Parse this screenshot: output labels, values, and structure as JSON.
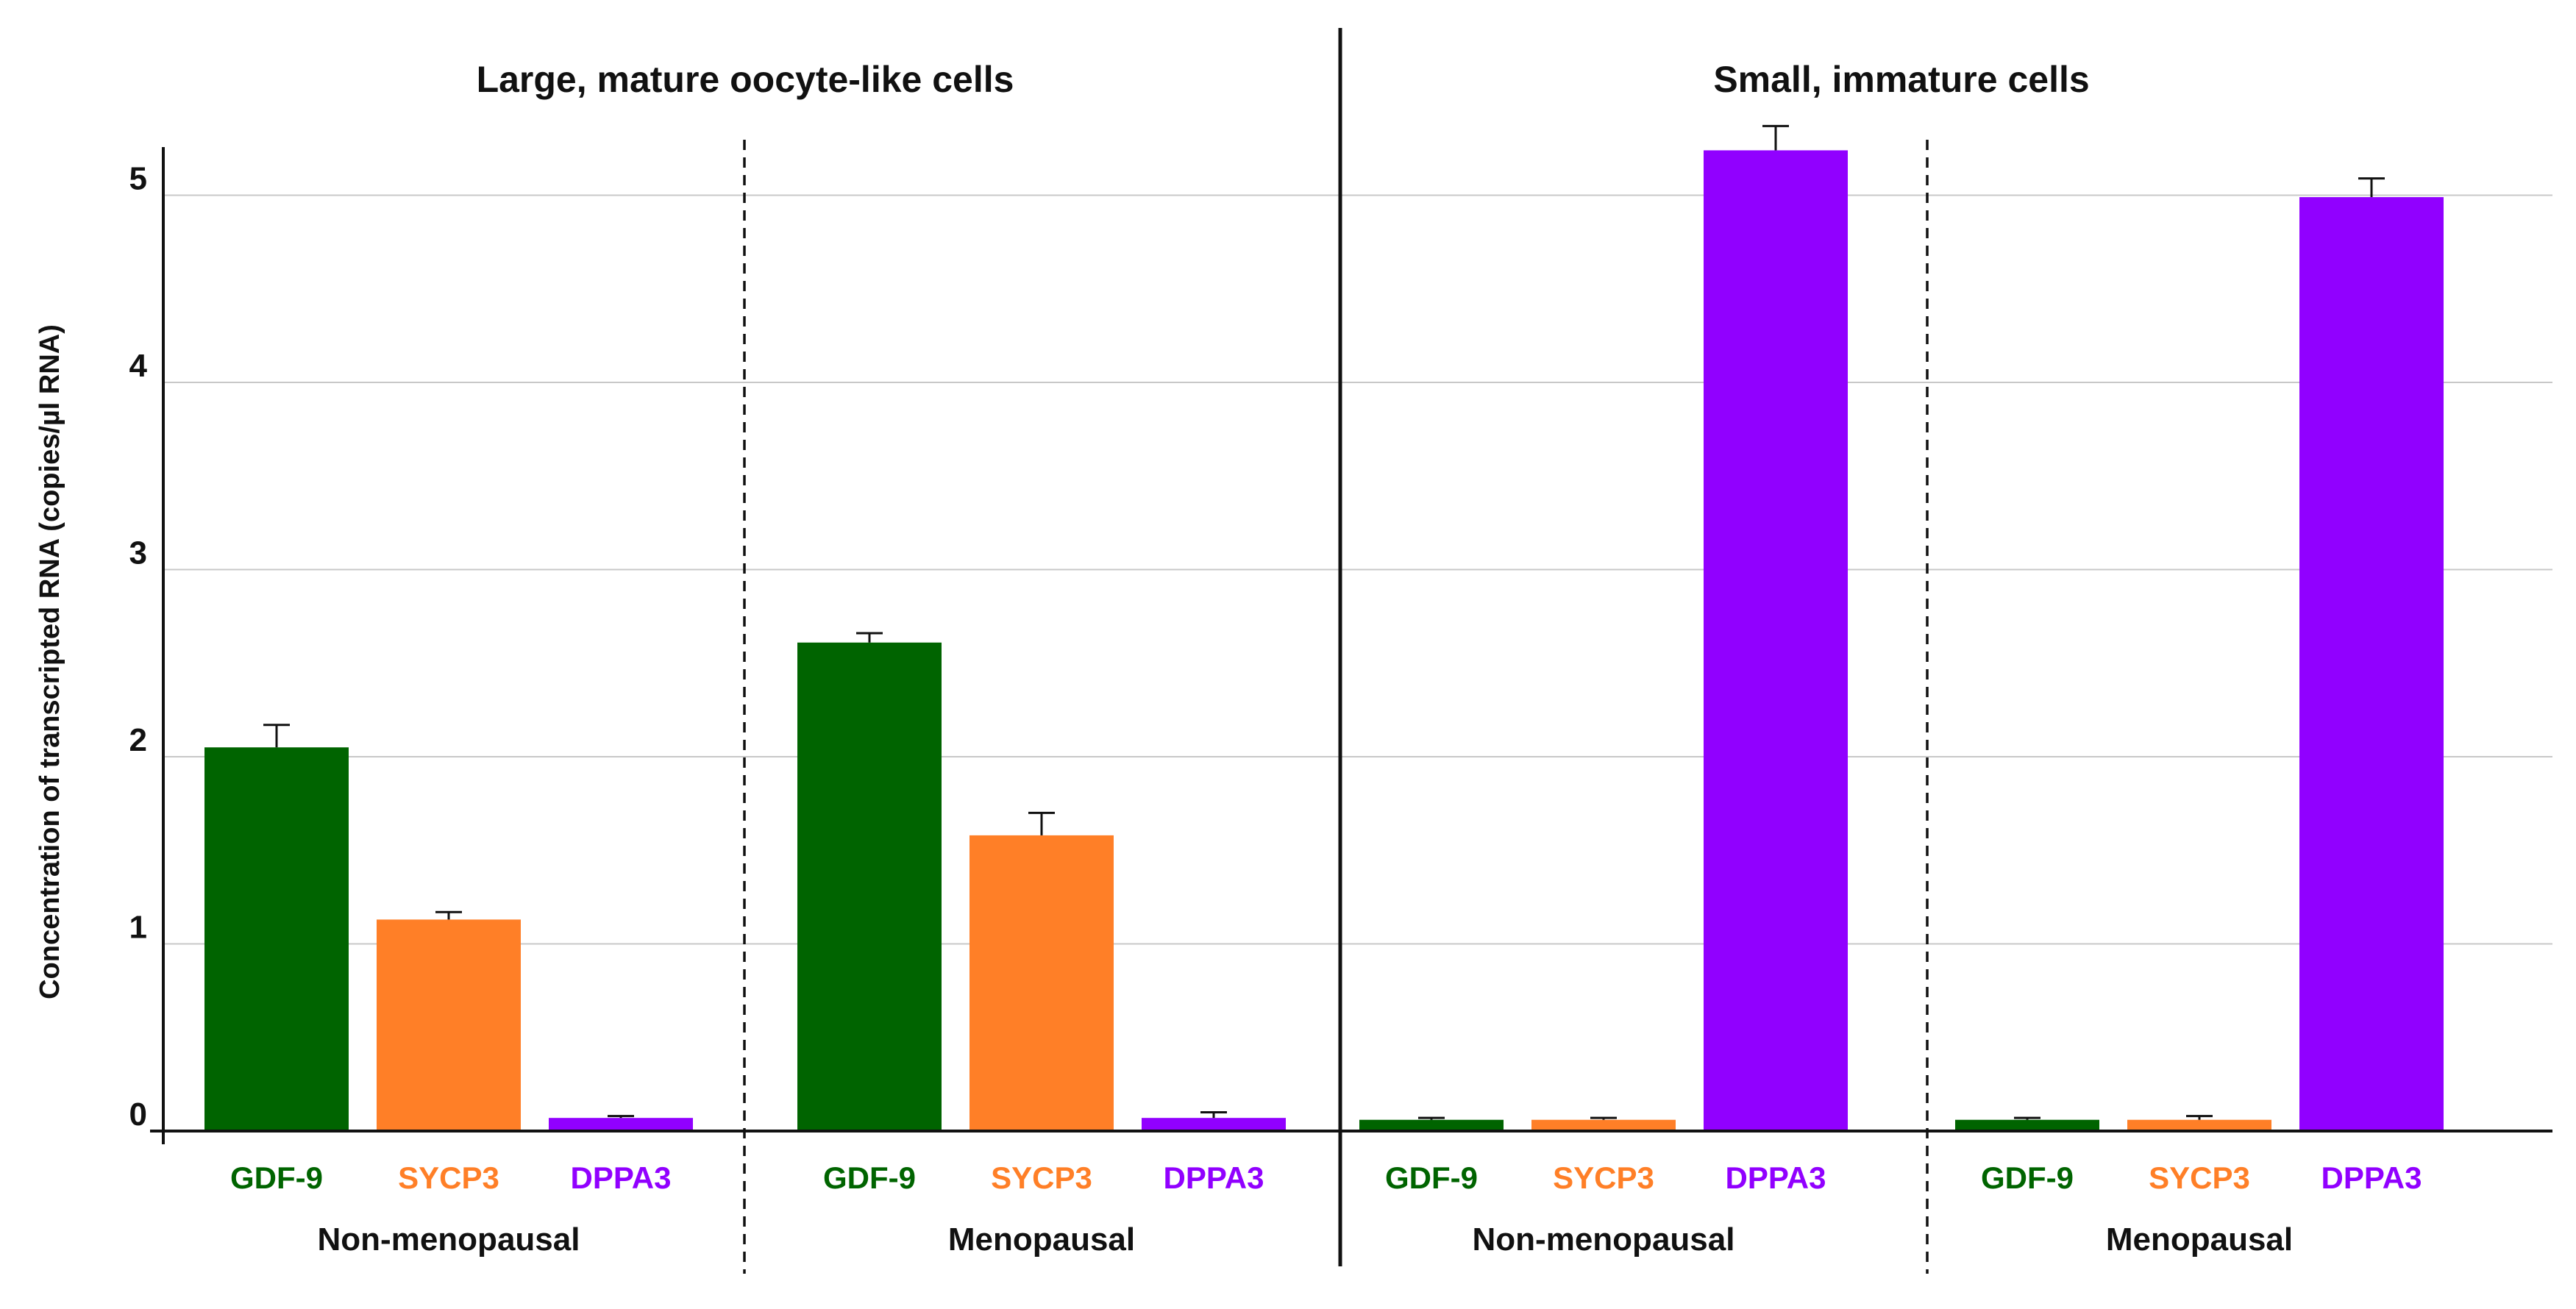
{
  "chart_data": {
    "type": "bar",
    "ylabel": "Concentration of transcripted RNA (copies/µl RNA)",
    "ylim": [
      0,
      5.3
    ],
    "yticks": [
      "0",
      "1",
      "2",
      "3",
      "4",
      "5"
    ],
    "grid": true,
    "colors": {
      "GDF-9": "#006400",
      "SYCP3": "#FF7F27",
      "DPPA3": "#9100FF"
    },
    "sections": [
      {
        "title": "Large, mature oocyte-like cells",
        "groups": [
          {
            "label": "Non-menopausal",
            "bars": [
              {
                "category": "GDF-9",
                "value": 2.05,
                "error": 0.12
              },
              {
                "category": "SYCP3",
                "value": 1.13,
                "error": 0.04
              },
              {
                "category": "DPPA3",
                "value": 0.07,
                "error": 0.01
              }
            ]
          },
          {
            "label": "Menopausal",
            "bars": [
              {
                "category": "GDF-9",
                "value": 2.61,
                "error": 0.05
              },
              {
                "category": "SYCP3",
                "value": 1.58,
                "error": 0.12
              },
              {
                "category": "DPPA3",
                "value": 0.07,
                "error": 0.03
              }
            ]
          }
        ]
      },
      {
        "title": "Small, immature cells",
        "groups": [
          {
            "label": "Non-menopausal",
            "bars": [
              {
                "category": "GDF-9",
                "value": 0.06,
                "error": 0.01
              },
              {
                "category": "SYCP3",
                "value": 0.06,
                "error": 0.01
              },
              {
                "category": "DPPA3",
                "value": 5.24,
                "error": 0.13
              }
            ]
          },
          {
            "label": "Menopausal",
            "bars": [
              {
                "category": "GDF-9",
                "value": 0.06,
                "error": 0.01
              },
              {
                "category": "SYCP3",
                "value": 0.06,
                "error": 0.02
              },
              {
                "category": "DPPA3",
                "value": 4.99,
                "error": 0.1
              }
            ]
          }
        ]
      }
    ]
  }
}
